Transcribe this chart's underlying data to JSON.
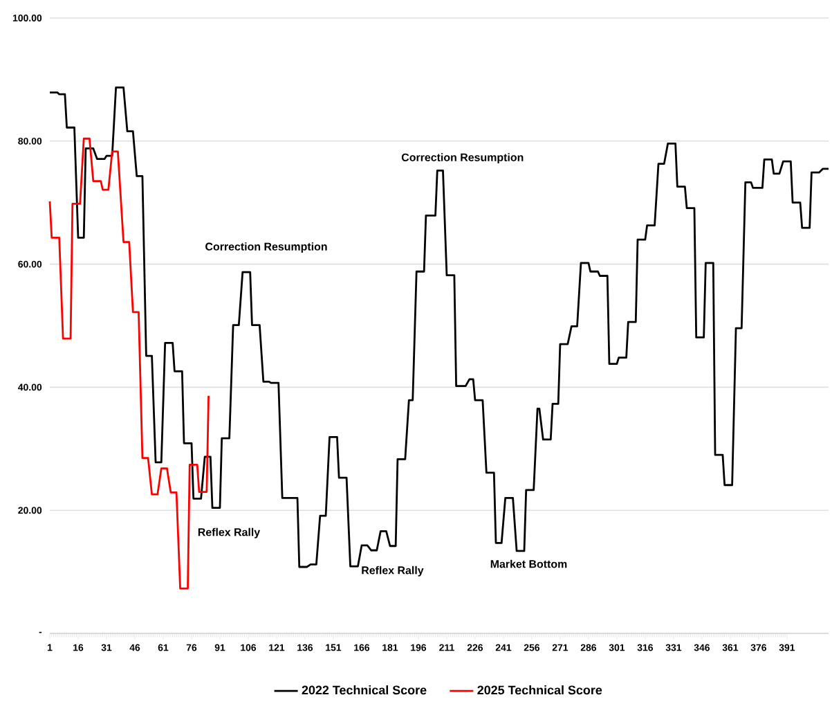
{
  "chart_data": {
    "type": "line",
    "x": [
      1,
      5,
      6,
      9,
      10,
      14,
      16,
      19,
      20,
      24,
      26,
      30,
      31,
      34,
      36,
      40,
      42,
      45,
      47,
      50,
      52,
      55,
      57,
      60,
      62,
      66,
      67,
      71,
      72,
      76,
      77,
      81,
      83,
      86,
      87,
      91,
      92,
      96,
      98,
      101,
      103,
      107,
      108,
      112,
      114,
      117,
      118,
      122,
      124,
      132,
      133,
      137,
      139,
      142,
      144,
      147,
      149,
      153,
      154,
      158,
      160,
      164,
      166,
      169,
      171,
      174,
      176,
      179,
      181,
      184,
      185,
      189,
      191,
      193,
      195,
      199,
      200,
      205,
      206,
      209,
      211,
      215,
      216,
      221,
      223,
      225,
      226,
      230,
      232,
      236,
      237,
      240,
      242,
      246,
      248,
      252,
      253,
      257,
      259,
      260,
      262,
      266,
      267,
      270,
      271,
      275,
      277,
      280,
      282,
      286,
      287,
      291,
      292,
      296,
      297,
      301,
      302,
      306,
      307,
      311,
      312,
      316,
      317,
      321,
      323,
      326,
      328,
      332,
      333,
      337,
      338,
      342,
      343,
      347,
      348,
      352,
      353,
      357,
      358,
      362,
      364,
      367,
      369,
      372,
      373,
      378,
      379,
      383,
      384,
      387,
      389,
      393,
      394,
      398,
      399,
      403,
      404,
      408,
      410,
      413
    ],
    "series": [
      {
        "name": "2022 Technical Score",
        "color": "#000000",
        "values": [
          87.9,
          87.9,
          87.6,
          87.6,
          82.2,
          82.2,
          64.3,
          64.3,
          78.8,
          78.8,
          77.1,
          77.1,
          77.6,
          77.6,
          88.7,
          88.7,
          81.6,
          81.6,
          74.3,
          74.3,
          45.1,
          45.1,
          27.8,
          27.8,
          47.2,
          47.2,
          42.6,
          42.6,
          30.9,
          30.9,
          21.9,
          21.9,
          28.7,
          28.7,
          20.4,
          20.4,
          31.7,
          31.7,
          50.1,
          50.1,
          58.7,
          58.7,
          50.1,
          50.1,
          40.9,
          40.9,
          40.7,
          40.7,
          22.0,
          22.0,
          10.8,
          10.8,
          11.2,
          11.2,
          19.1,
          19.1,
          31.9,
          31.9,
          25.3,
          25.3,
          10.9,
          10.9,
          14.3,
          14.3,
          13.5,
          13.5,
          16.6,
          16.6,
          14.2,
          14.2,
          28.3,
          28.3,
          37.9,
          37.9,
          58.8,
          58.8,
          67.9,
          67.9,
          75.2,
          75.2,
          58.2,
          58.2,
          40.2,
          40.2,
          41.3,
          41.3,
          37.9,
          37.9,
          26.1,
          26.1,
          14.7,
          14.7,
          22.0,
          22.0,
          13.4,
          13.4,
          23.3,
          23.3,
          36.5,
          36.5,
          31.5,
          31.5,
          37.3,
          37.3,
          47.0,
          47.0,
          49.9,
          49.9,
          60.2,
          60.2,
          58.8,
          58.8,
          58.1,
          58.1,
          43.8,
          43.8,
          44.8,
          44.8,
          50.6,
          50.6,
          64.0,
          64.0,
          66.3,
          66.3,
          76.3,
          76.3,
          79.6,
          79.6,
          72.6,
          72.6,
          69.1,
          69.1,
          48.1,
          48.1,
          60.2,
          60.2,
          29.0,
          29.0,
          24.1,
          24.1,
          49.6,
          49.6,
          73.3,
          73.3,
          72.4,
          72.4,
          77.0,
          77.0,
          74.7,
          74.7,
          76.7,
          76.7,
          70.0,
          70.0,
          65.9,
          65.9,
          74.9,
          74.9,
          75.5,
          75.5
        ]
      },
      {
        "name": "2025 Technical Score",
        "color": "#ff0000",
        "x": [
          1,
          2,
          6,
          8,
          12,
          13,
          17,
          19,
          22,
          24,
          28,
          29,
          32,
          34,
          37,
          40,
          43,
          45,
          48,
          50,
          53,
          55,
          58,
          60,
          63,
          65,
          68,
          70,
          74,
          75,
          79,
          80,
          84,
          85
        ],
        "values": [
          70.2,
          64.3,
          64.3,
          47.9,
          47.9,
          69.8,
          69.8,
          80.4,
          80.4,
          73.5,
          73.5,
          72.1,
          72.1,
          78.3,
          78.3,
          63.6,
          63.6,
          52.2,
          52.2,
          28.5,
          28.5,
          22.6,
          22.6,
          26.8,
          26.8,
          22.9,
          22.9,
          7.3,
          7.3,
          27.4,
          27.4,
          23.0,
          23.0,
          38.6
        ]
      }
    ],
    "xlim": [
      1,
      413
    ],
    "xticks": [
      1,
      16,
      31,
      46,
      61,
      76,
      91,
      106,
      121,
      136,
      151,
      166,
      181,
      196,
      211,
      226,
      241,
      256,
      271,
      286,
      301,
      316,
      331,
      346,
      361,
      376,
      391
    ],
    "ylim": [
      0,
      100
    ],
    "yticks": [
      {
        "value": 0,
        "label": "-"
      },
      {
        "value": 20,
        "label": "20.00"
      },
      {
        "value": 40,
        "label": "40.00"
      },
      {
        "value": 60,
        "label": "60.00"
      },
      {
        "value": 80,
        "label": "80.00"
      },
      {
        "value": 100,
        "label": "100.00"
      }
    ],
    "grid": "y",
    "legend": "bottom",
    "line_style": "solid",
    "marker": "none",
    "annotations": [
      "Correction Resumption",
      "Correction Resumption",
      "Reflex Rally",
      "Reflex Rally",
      "Market Bottom"
    ]
  }
}
